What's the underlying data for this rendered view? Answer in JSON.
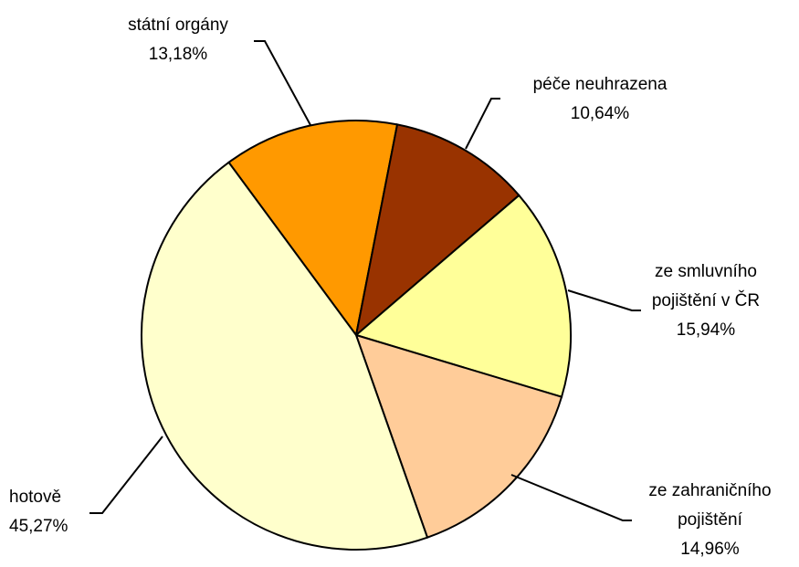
{
  "chart_data": {
    "type": "pie",
    "categories": [
      "státní orgány",
      "péče neuhrazena",
      "ze smluvního pojištění v ČR",
      "ze zahraničního pojištění",
      "hotově"
    ],
    "values": [
      13.18,
      10.64,
      15.94,
      14.96,
      45.27
    ],
    "value_labels": [
      "13,18%",
      "10,64%",
      "15,94%",
      "14,96%",
      "45,27%"
    ],
    "colors": [
      "#FF9900",
      "#993300",
      "#FFFF99",
      "#FFCC99",
      "#FFFFCC"
    ]
  }
}
